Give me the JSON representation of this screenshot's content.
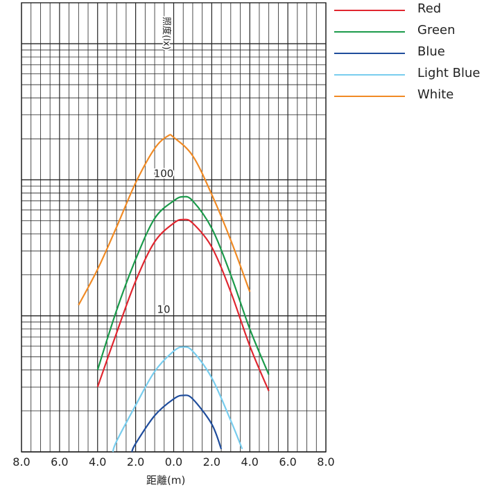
{
  "chart_data": {
    "type": "line",
    "xlabel": "距離(m)",
    "ylabel": "照度(lx)",
    "x_tick_labels": [
      "8.0",
      "6.0",
      "4.0",
      "2.0",
      "0.0",
      "2.0",
      "4.0",
      "6.0",
      "8.0"
    ],
    "x_tick_values": [
      -8,
      -6,
      -4,
      -2,
      0,
      2,
      4,
      6,
      8
    ],
    "xlim": [
      -8,
      8
    ],
    "y_scale": "log",
    "ylim": [
      1,
      2000
    ],
    "y_tick_labels": [
      {
        "value": 10,
        "label": "10"
      },
      {
        "value": 100,
        "label": "100"
      }
    ],
    "grid": true,
    "legend_position": "right",
    "series": [
      {
        "name": "Red",
        "color": "#e0262f",
        "points": [
          [
            -4.0,
            3.0
          ],
          [
            -3.0,
            7.5
          ],
          [
            -2.0,
            18
          ],
          [
            -1.0,
            35
          ],
          [
            0.0,
            48
          ],
          [
            0.5,
            51
          ],
          [
            1.0,
            48
          ],
          [
            2.0,
            32
          ],
          [
            3.0,
            15
          ],
          [
            4.0,
            6.0
          ],
          [
            5.0,
            2.8
          ]
        ]
      },
      {
        "name": "Green",
        "color": "#1a9a4a",
        "points": [
          [
            -4.0,
            4.0
          ],
          [
            -3.0,
            11
          ],
          [
            -2.0,
            26
          ],
          [
            -1.0,
            52
          ],
          [
            0.0,
            70
          ],
          [
            0.5,
            75
          ],
          [
            1.0,
            70
          ],
          [
            2.0,
            44
          ],
          [
            3.0,
            20
          ],
          [
            4.0,
            8.0
          ],
          [
            5.0,
            3.7
          ]
        ]
      },
      {
        "name": "Blue",
        "color": "#1f4d9c",
        "points": [
          [
            -2.2,
            1.0
          ],
          [
            -2.0,
            1.15
          ],
          [
            -1.0,
            1.85
          ],
          [
            0.0,
            2.45
          ],
          [
            0.5,
            2.6
          ],
          [
            1.0,
            2.45
          ],
          [
            2.0,
            1.6
          ],
          [
            2.5,
            1.05
          ]
        ]
      },
      {
        "name": "Light Blue",
        "color": "#78cdee",
        "points": [
          [
            -3.2,
            1.0
          ],
          [
            -3.0,
            1.2
          ],
          [
            -2.0,
            2.2
          ],
          [
            -1.0,
            3.9
          ],
          [
            0.0,
            5.5
          ],
          [
            0.5,
            5.9
          ],
          [
            1.0,
            5.5
          ],
          [
            2.0,
            3.5
          ],
          [
            3.0,
            1.7
          ],
          [
            3.6,
            1.05
          ]
        ]
      },
      {
        "name": "White",
        "color": "#f08a24",
        "points": [
          [
            -5.0,
            12
          ],
          [
            -4.0,
            22
          ],
          [
            -3.0,
            45
          ],
          [
            -2.0,
            95
          ],
          [
            -1.0,
            170
          ],
          [
            -0.3,
            210
          ],
          [
            0.0,
            205
          ],
          [
            1.0,
            150
          ],
          [
            2.0,
            78
          ],
          [
            3.0,
            36
          ],
          [
            4.0,
            15
          ]
        ]
      }
    ]
  }
}
